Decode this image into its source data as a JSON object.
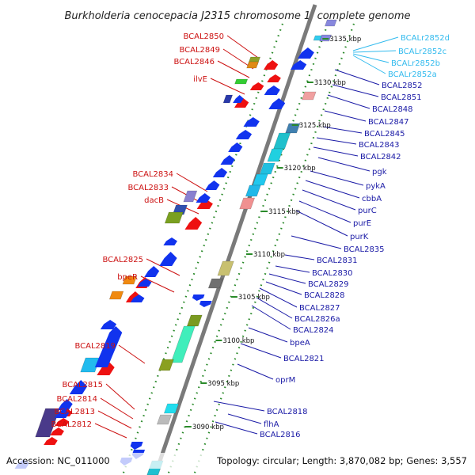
{
  "title": "Burkholderia cenocepacia J2315 chromosome 1, complete genome",
  "footer": {
    "accession": "Accession: NC_011000",
    "summary": "Topology: circular; Length: 3,870,082 bp; Genes: 3,557"
  },
  "colors": {
    "left_label": "#cc1111",
    "right_label": "#1a1aa6",
    "rna_label": "#33bbee",
    "axis": "#7f7f7f",
    "track_dots": "#2a8a2a",
    "reverse_arrow": "#ee1111",
    "forward_arrow": "#1133ee"
  },
  "ticks": [
    "3135 kbp",
    "3130 kbp",
    "3125 kbp",
    "3120 kbp",
    "3115 kbp",
    "3110 kbp",
    "3105 kbp",
    "3100 kbp",
    "3095 kbp",
    "3090 kbp"
  ],
  "left_labels": [
    "BCAL2850",
    "BCAL2849",
    "BCAL2846",
    "ilvE",
    "BCAL2834",
    "BCAL2833",
    "dacB",
    "BCAL2825",
    "bpeR",
    "BCAL2819",
    "BCAL2815",
    "BCAL2814",
    "BCAL2813",
    "BCAL2812"
  ],
  "rna_labels": [
    "BCALr2852d",
    "BCALr2852c",
    "BCALr2852b",
    "BCALr2852a"
  ],
  "right_labels": [
    "BCAL2852",
    "BCAL2851",
    "BCAL2848",
    "BCAL2847",
    "BCAL2845",
    "BCAL2843",
    "BCAL2842",
    "pgk",
    "pykA",
    "cbbA",
    "purC",
    "purE",
    "purK",
    "BCAL2835",
    "BCAL2831",
    "BCAL2830",
    "BCAL2829",
    "BCAL2828",
    "BCAL2827",
    "BCAL2826a",
    "BCAL2824",
    "bpeA",
    "BCAL2821",
    "oprM",
    "BCAL2818",
    "flhA",
    "BCAL2816"
  ]
}
